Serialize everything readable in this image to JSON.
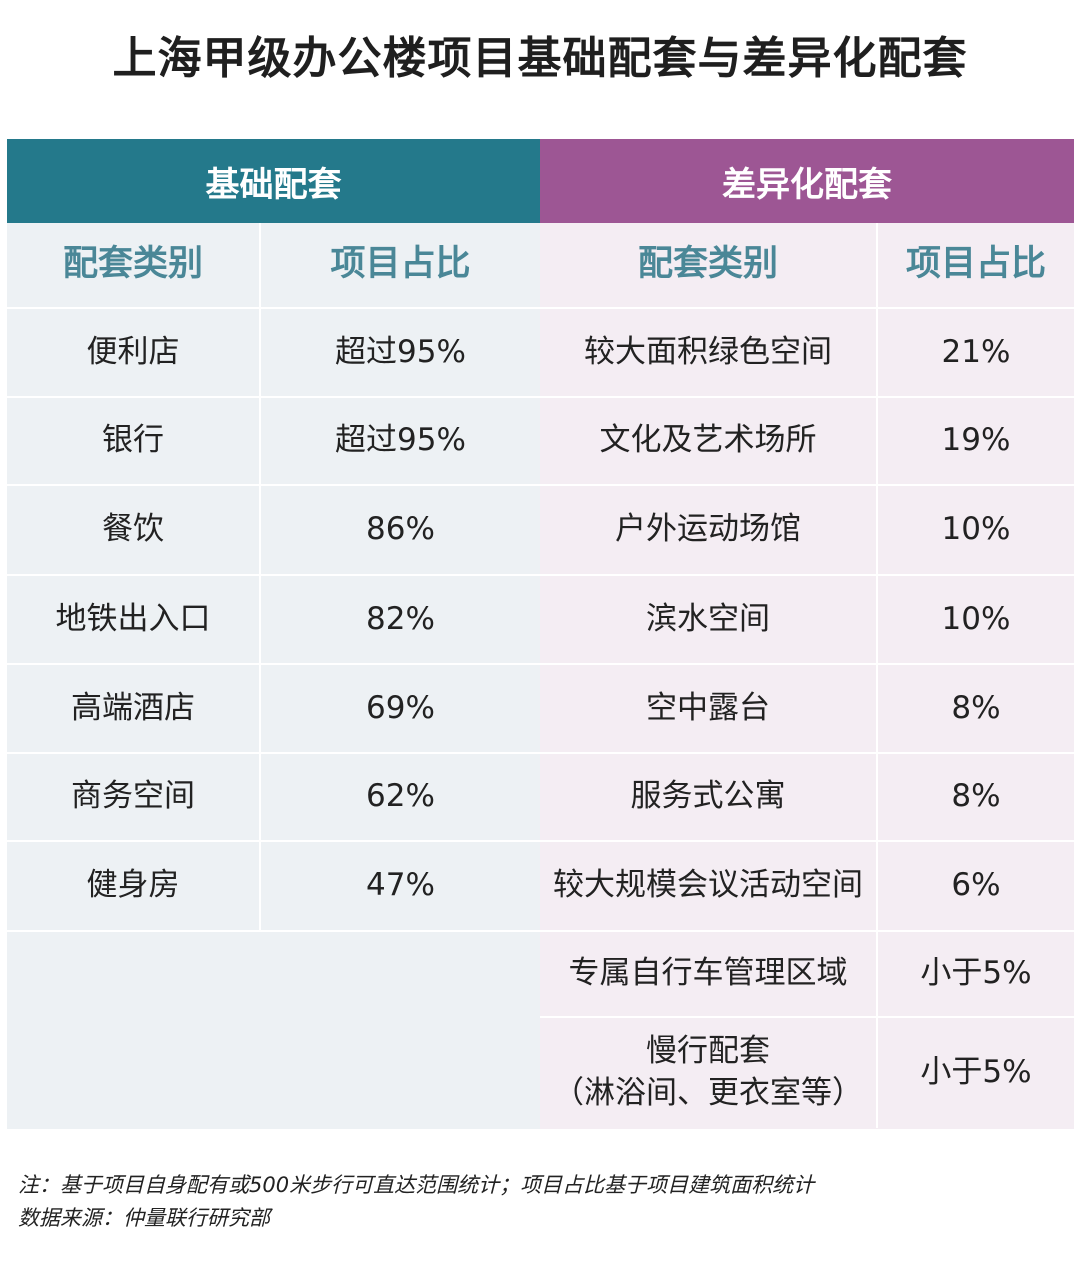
{
  "title": "上海甲级办公楼项目基础配套与差异化配套",
  "left": {
    "header": "基础配套",
    "col_category": "配套类别",
    "col_share": "项目占比",
    "rows": [
      {
        "category": "便利店",
        "share": "超过95%"
      },
      {
        "category": "银行",
        "share": "超过95%"
      },
      {
        "category": "餐饮",
        "share": "86%"
      },
      {
        "category": "地铁出入口",
        "share": "82%"
      },
      {
        "category": "高端酒店",
        "share": "69%"
      },
      {
        "category": "商务空间",
        "share": "62%"
      },
      {
        "category": "健身房",
        "share": "47%"
      }
    ]
  },
  "right": {
    "header": "差异化配套",
    "col_category": "配套类别",
    "col_share": "项目占比",
    "rows": [
      {
        "category": "较大面积绿色空间",
        "share": "21%"
      },
      {
        "category": "文化及艺术场所",
        "share": "19%"
      },
      {
        "category": "户外运动场馆",
        "share": "10%"
      },
      {
        "category": "滨水空间",
        "share": "10%"
      },
      {
        "category": "空中露台",
        "share": "8%"
      },
      {
        "category": "服务式公寓",
        "share": "8%"
      },
      {
        "category": "较大规模会议活动空间",
        "share": "6%"
      },
      {
        "category": "专属自行车管理区域",
        "share": "小于5%"
      },
      {
        "category": "慢行配套",
        "category_sub": "（淋浴间、更衣室等）",
        "share": "小于5%"
      }
    ]
  },
  "notes": {
    "note": "注：基于项目自身配有或500米步行可直达范围统计；项目占比基于项目建筑面积统计",
    "source": "数据来源：仲量联行研究部"
  }
}
